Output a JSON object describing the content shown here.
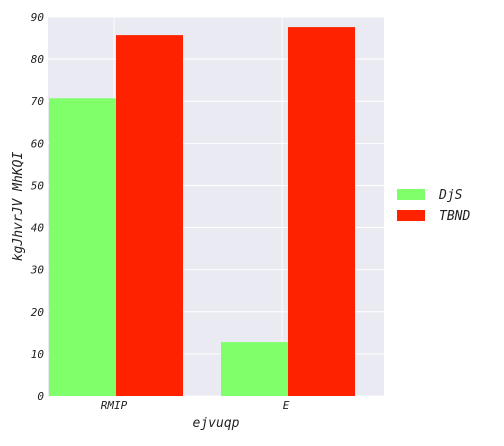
{
  "chart_data": {
    "type": "bar",
    "categories": [
      "RMIP",
      "E"
    ],
    "series": [
      {
        "name": "DjS",
        "values": [
          70.7,
          12.8
        ],
        "color": "#80ff6b"
      },
      {
        "name": "TBND",
        "values": [
          85.7,
          87.6
        ],
        "color": "#ff2200"
      }
    ],
    "xlabel": "ejvuqp",
    "ylabel": "kgJhvrJV MhKQI",
    "ylim": [
      0,
      90
    ],
    "yticks": [
      0,
      10,
      20,
      30,
      40,
      50,
      60,
      70,
      80,
      90
    ],
    "grid": true,
    "legend_position": "right",
    "background_color": "#eaeaf2"
  }
}
